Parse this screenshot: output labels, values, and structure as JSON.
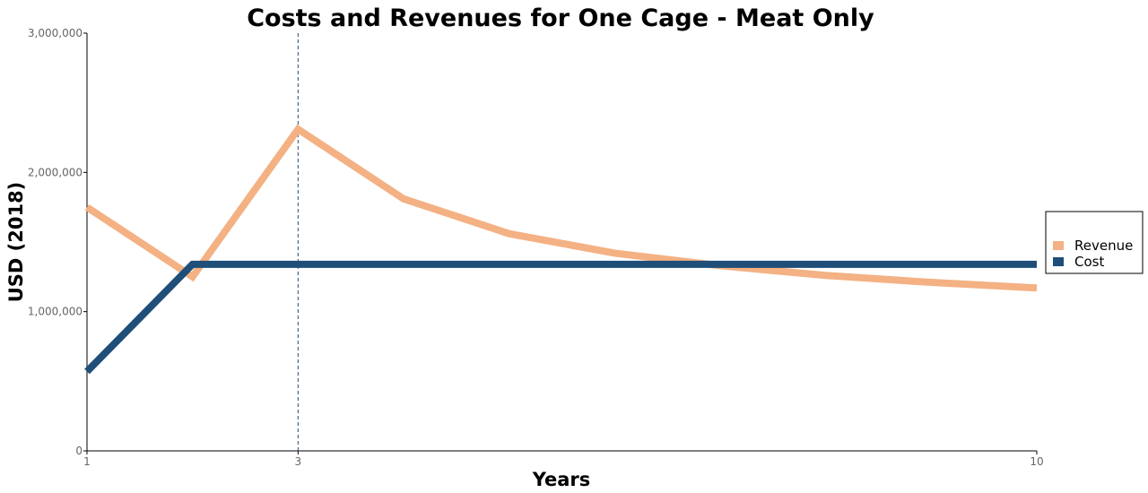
{
  "chart_data": {
    "type": "line",
    "title": "Costs and Revenues for One Cage - Meat Only",
    "xlabel": "Years",
    "ylabel": "USD (2018)",
    "x": [
      1,
      2,
      3,
      4,
      5,
      6,
      7,
      8,
      9,
      10
    ],
    "xlim": [
      1,
      10
    ],
    "ylim": [
      0,
      3000000
    ],
    "x_ticks": [
      1,
      3,
      10
    ],
    "x_tick_labels": [
      "1",
      "3",
      "10"
    ],
    "y_ticks": [
      0,
      1000000,
      2000000,
      3000000
    ],
    "y_tick_labels": [
      "0",
      "1,000,000",
      "2,000,000",
      "3,000,000"
    ],
    "reference_line": {
      "x": 3,
      "style": "dashed",
      "color": "#1F4E79"
    },
    "series": [
      {
        "name": "Revenue",
        "color": "#F4B183",
        "values": [
          1750000,
          1250000,
          2310000,
          1810000,
          1560000,
          1420000,
          1330000,
          1260000,
          1210000,
          1170000
        ]
      },
      {
        "name": "Cost",
        "color": "#1F4E79",
        "values": [
          570000,
          1340000,
          1340000,
          1340000,
          1340000,
          1340000,
          1340000,
          1340000,
          1340000,
          1340000
        ]
      }
    ],
    "grid": false,
    "legend": {
      "position": "right",
      "entries": [
        "Revenue",
        "Cost"
      ]
    }
  }
}
